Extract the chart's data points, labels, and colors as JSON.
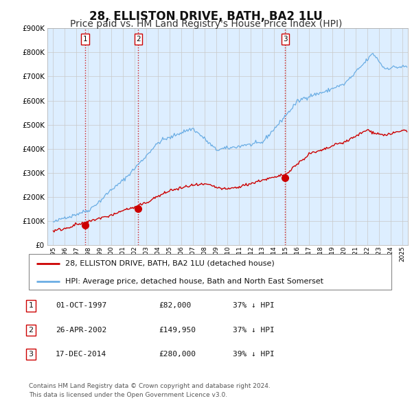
{
  "title": "28, ELLISTON DRIVE, BATH, BA2 1LU",
  "subtitle": "Price paid vs. HM Land Registry's House Price Index (HPI)",
  "sale_year_nums": [
    1997.75,
    2002.32,
    2014.96
  ],
  "sale_prices": [
    82000,
    149950,
    280000
  ],
  "sale_labels": [
    "1",
    "2",
    "3"
  ],
  "legend_line1": "28, ELLISTON DRIVE, BATH, BA2 1LU (detached house)",
  "legend_line2": "HPI: Average price, detached house, Bath and North East Somerset",
  "table_data": [
    [
      "1",
      "01-OCT-1997",
      "£82,000",
      "37% ↓ HPI"
    ],
    [
      "2",
      "26-APR-2002",
      "£149,950",
      "37% ↓ HPI"
    ],
    [
      "3",
      "17-DEC-2014",
      "£280,000",
      "39% ↓ HPI"
    ]
  ],
  "footnote1": "Contains HM Land Registry data © Crown copyright and database right 2024.",
  "footnote2": "This data is licensed under the Open Government Licence v3.0.",
  "hpi_color": "#6aade4",
  "sale_color": "#cc0000",
  "vline_color": "#cc0000",
  "grid_color": "#c8c8c8",
  "chart_bg_color": "#ddeeff",
  "bg_color": "#ffffff",
  "ylim": [
    0,
    900000
  ],
  "yticks": [
    0,
    100000,
    200000,
    300000,
    400000,
    500000,
    600000,
    700000,
    800000,
    900000
  ],
  "xlim_start": 1994.5,
  "xlim_end": 2025.5,
  "title_fontsize": 12,
  "subtitle_fontsize": 10
}
